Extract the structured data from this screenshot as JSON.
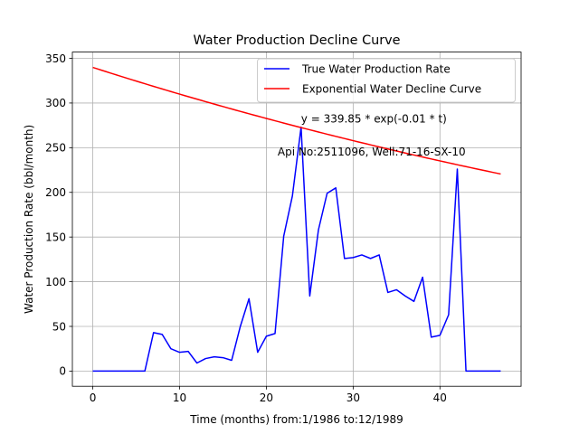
{
  "chart_data": {
    "type": "line",
    "title": "Water Production Decline Curve",
    "xlabel": "Time (months) from:1/1986 to:12/1989",
    "ylabel": "Water Production Rate (bbl/month)",
    "xlim": [
      -2.35,
      49.35
    ],
    "ylim": [
      -17,
      357
    ],
    "xticks": [
      0,
      10,
      20,
      30,
      40
    ],
    "yticks": [
      0,
      50,
      100,
      150,
      200,
      250,
      300,
      350
    ],
    "grid": true,
    "legend_position": "top-right",
    "annotations": [
      {
        "text": "y = 339.85 * exp(-0.01 * t)",
        "x": 24.0,
        "y": 278
      },
      {
        "text": "Api No:2511096, Well:71-16-SX-10",
        "x": 21.3,
        "y": 241
      }
    ],
    "series": [
      {
        "name": "True Water Production Rate",
        "color": "#0000ff",
        "x": [
          0,
          1,
          2,
          3,
          4,
          5,
          6,
          7,
          8,
          9,
          10,
          11,
          12,
          13,
          14,
          15,
          16,
          17,
          18,
          19,
          20,
          21,
          22,
          23,
          24,
          25,
          26,
          27,
          28,
          29,
          30,
          31,
          32,
          33,
          34,
          35,
          36,
          37,
          38,
          39,
          40,
          41,
          42,
          43,
          44,
          45,
          46,
          47
        ],
        "y": [
          0,
          0,
          0,
          0,
          0,
          0,
          0,
          43,
          41,
          25,
          21,
          22,
          9,
          14,
          16,
          15,
          12,
          50,
          81,
          21,
          39,
          42,
          151,
          196,
          273,
          84,
          158,
          199,
          205,
          126,
          127,
          130,
          126,
          130,
          88,
          91,
          84,
          78,
          105,
          38,
          40,
          63,
          226,
          0,
          0,
          0,
          0,
          0
        ]
      },
      {
        "name": "Exponential Water Decline Curve",
        "color": "#ff0000",
        "a": 339.85,
        "b": 0.0092,
        "x_range": [
          0,
          47
        ]
      }
    ]
  }
}
